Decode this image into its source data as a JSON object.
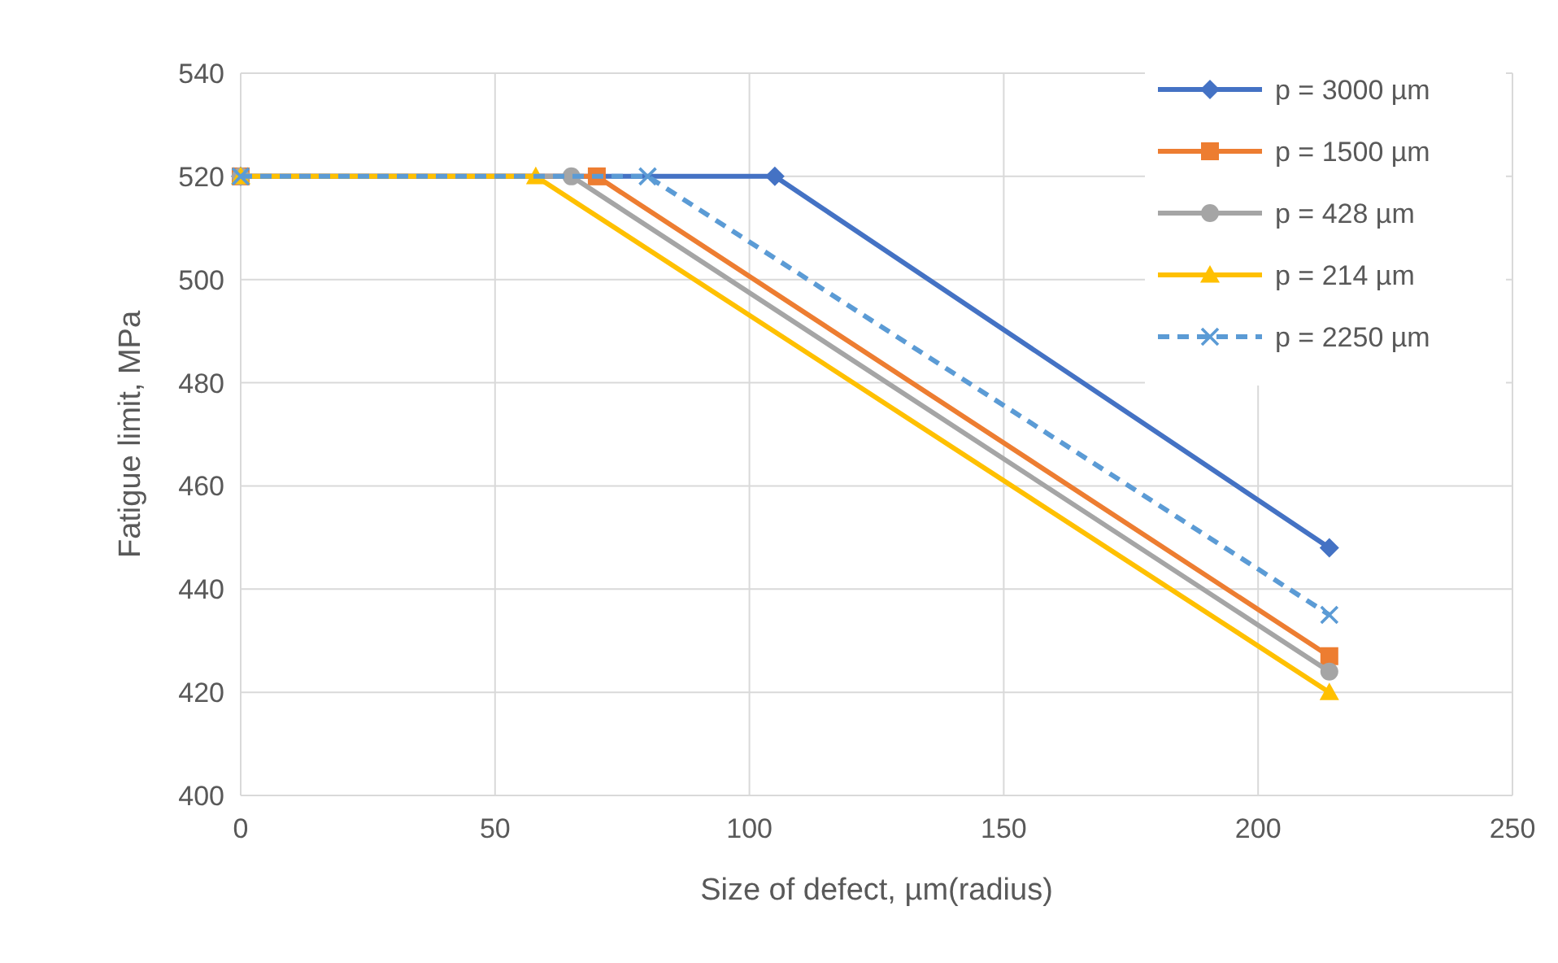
{
  "chart_data": {
    "type": "line",
    "xlabel": "Size of defect, µm(radius)",
    "ylabel": "Fatigue limit, MPa",
    "xlim": [
      0,
      250
    ],
    "xticks": [
      0,
      50,
      100,
      150,
      200,
      250
    ],
    "ylim": [
      400,
      540
    ],
    "yticks": [
      400,
      420,
      440,
      460,
      480,
      500,
      520,
      540
    ],
    "grid": true,
    "legend": "top right",
    "series": [
      {
        "name": "p = 3000 µm",
        "color": "#4472c4",
        "marker": "diamond",
        "line_style": "solid",
        "x": [
          0,
          105,
          214
        ],
        "values": [
          520,
          520,
          448
        ]
      },
      {
        "name": "p = 1500 µm",
        "color": "#ed7d31",
        "marker": "square",
        "line_style": "solid",
        "x": [
          0,
          70,
          214
        ],
        "values": [
          520,
          520,
          427
        ]
      },
      {
        "name": "p = 428 µm",
        "color": "#a5a5a5",
        "marker": "circle",
        "line_style": "solid",
        "x": [
          0,
          65,
          214
        ],
        "values": [
          520,
          520,
          424
        ]
      },
      {
        "name": "p = 214 µm",
        "color": "#ffc000",
        "marker": "triangle",
        "line_style": "solid",
        "x": [
          0,
          58,
          214
        ],
        "values": [
          520,
          520,
          420
        ]
      },
      {
        "name": "p = 2250 µm",
        "color": "#5b9bd5",
        "marker": "cross",
        "line_style": "dashed",
        "x": [
          0,
          80,
          214
        ],
        "values": [
          520,
          520,
          435
        ]
      }
    ]
  }
}
